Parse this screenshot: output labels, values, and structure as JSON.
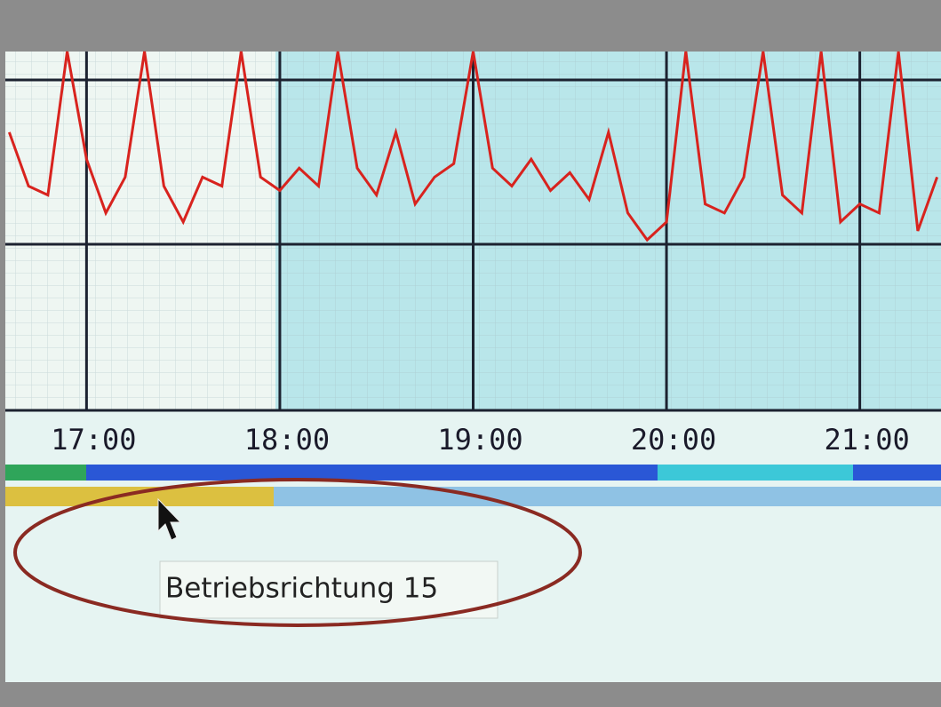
{
  "chart_data": {
    "type": "line",
    "x": [
      16.6,
      16.7,
      16.8,
      16.9,
      17.0,
      17.1,
      17.2,
      17.3,
      17.4,
      17.5,
      17.6,
      17.7,
      17.8,
      17.9,
      18.0,
      18.1,
      18.2,
      18.3,
      18.4,
      18.5,
      18.6,
      18.7,
      18.8,
      18.9,
      19.0,
      19.1,
      19.2,
      19.3,
      19.4,
      19.5,
      19.6,
      19.7,
      19.8,
      19.9,
      20.0,
      20.1,
      20.2,
      20.3,
      20.4,
      20.5,
      20.6,
      20.7,
      20.8,
      20.9,
      21.0,
      21.1,
      21.2,
      21.3,
      21.4
    ],
    "series": [
      {
        "color": "#d8231e",
        "values": [
          3.1,
          2.5,
          2.4,
          4,
          2.8,
          2.2,
          2.6,
          4,
          2.5,
          2.1,
          2.6,
          2.5,
          4,
          2.6,
          2.45,
          2.7,
          2.5,
          4,
          2.7,
          2.4,
          3.1,
          2.3,
          2.6,
          2.75,
          4,
          2.7,
          2.5,
          2.8,
          2.45,
          2.65,
          2.35,
          3.1,
          2.2,
          1.9,
          2.1,
          4,
          2.3,
          2.2,
          2.6,
          4,
          2.4,
          2.2,
          4,
          2.1,
          2.3,
          2.2,
          4,
          2.0,
          2.6
        ]
      }
    ],
    "xlim": [
      16.58,
      21.42
    ],
    "ylim": [
      0,
      4
    ],
    "xticks": [
      {
        "value": 17,
        "label": "17:00"
      },
      {
        "value": 18,
        "label": "18:00"
      },
      {
        "value": 19,
        "label": "19:00"
      },
      {
        "value": 20,
        "label": "20:00"
      },
      {
        "value": 21,
        "label": "21:00"
      }
    ],
    "grid": true
  },
  "tooltip": {
    "text": "Betriebsrichtung 15"
  }
}
